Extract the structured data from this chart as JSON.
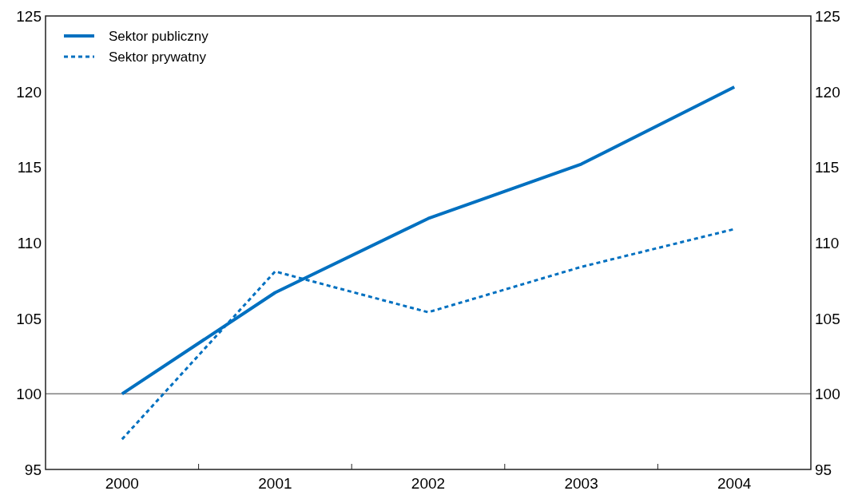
{
  "chart_data": {
    "type": "line",
    "categories": [
      "2000",
      "2001",
      "2002",
      "2003",
      "2004"
    ],
    "series": [
      {
        "name": "Sektor publiczny",
        "color": "#0070c0",
        "values": [
          100,
          106.7,
          111.6,
          115.2,
          120.3
        ],
        "line_style": "solid"
      },
      {
        "name": "Sektor prywatny",
        "color": "#0070c0",
        "values": [
          97.0,
          108.1,
          105.4,
          108.4,
          110.9
        ],
        "line_style": "dashed"
      }
    ],
    "ylim": [
      95,
      125
    ],
    "yticks": [
      95,
      100,
      105,
      110,
      115,
      120,
      125
    ],
    "y2lim": [
      95,
      125
    ],
    "y2ticks": [
      95,
      100,
      105,
      110,
      115,
      120,
      125
    ],
    "ref_lines": [
      {
        "axis": "y",
        "value": 100,
        "color": "#808080"
      }
    ],
    "legend": "top left",
    "grid": false
  }
}
